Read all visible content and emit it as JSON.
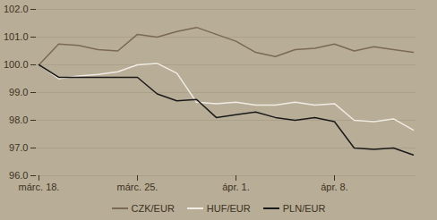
{
  "chart_data": {
    "type": "line",
    "categories": [
      "márc. 18.",
      null,
      null,
      null,
      null,
      "márc. 25.",
      null,
      null,
      null,
      null,
      "ápr. 1.",
      null,
      null,
      null,
      null,
      "ápr. 8.",
      null,
      null,
      null,
      null
    ],
    "series": [
      {
        "name": "CZK/EUR",
        "color": "#7a6a55",
        "values": [
          100.0,
          100.75,
          100.7,
          100.55,
          100.5,
          101.1,
          101.0,
          101.2,
          101.35,
          101.1,
          100.85,
          100.45,
          100.3,
          100.55,
          100.6,
          100.75,
          100.5,
          100.65,
          100.55,
          100.45
        ]
      },
      {
        "name": "HUF/EUR",
        "color": "#f0ece4",
        "values": [
          100.0,
          99.5,
          99.6,
          99.65,
          99.75,
          100.0,
          100.05,
          99.7,
          98.65,
          98.6,
          98.65,
          98.55,
          98.55,
          98.65,
          98.55,
          98.6,
          98.0,
          97.95,
          98.05,
          97.65
        ]
      },
      {
        "name": "PLN/EUR",
        "color": "#1a1a1a",
        "values": [
          100.0,
          99.55,
          99.55,
          99.55,
          99.55,
          99.55,
          98.95,
          98.7,
          98.75,
          98.1,
          98.2,
          98.3,
          98.1,
          98.0,
          98.1,
          97.95,
          97.0,
          96.95,
          97.0,
          96.75
        ]
      }
    ],
    "ylim": [
      96,
      102
    ],
    "yticks": [
      96,
      97,
      98,
      99,
      100,
      101,
      102
    ],
    "grid": true,
    "legend": "bottom"
  }
}
